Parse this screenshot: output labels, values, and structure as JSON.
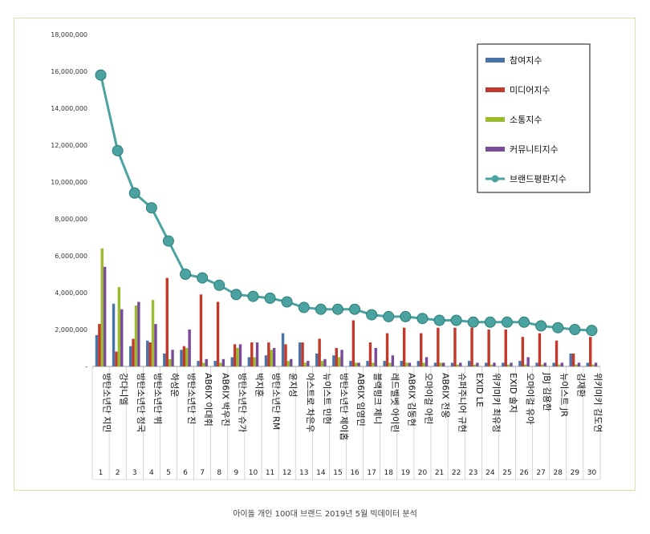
{
  "caption": "아이돌 개인 100대 브랜드 2019년 5월 빅데이터 분석",
  "colors": {
    "participation": "#4a74a8",
    "media": "#c0392b",
    "communication": "#9bbb2e",
    "community": "#7a4a9a",
    "brand": "#4aa3a0"
  },
  "chart_data": {
    "type": "bar",
    "ylim": [
      0,
      18000000
    ],
    "yticks": [
      "-",
      "2,000,000",
      "4,000,000",
      "6,000,000",
      "8,000,000",
      "10,000,000",
      "12,000,000",
      "14,000,000",
      "16,000,000",
      "18,000,000"
    ],
    "grid": false,
    "legend_position": "top-right",
    "categories": [
      "방탄소년단 지민",
      "강다니엘",
      "방탄소년단 정국",
      "방탄소년단 뷔",
      "하성운",
      "방탄소년단 진",
      "AB6IX 이대휘",
      "AB6IX 박우진",
      "방탄소년단 슈가",
      "박지훈",
      "방탄소년단 RM",
      "윤지성",
      "아스트로 차은우",
      "뉴이스트 민현",
      "방탄소년단 제이홉",
      "AB6IX 임영민",
      "블랙핑크 제니",
      "레드벨벳 아이린",
      "AB6IX 김동현",
      "오마이걸 아린",
      "AB6IX 전웅",
      "슈퍼주니어 규현",
      "EXID LE",
      "위키미키 최유정",
      "EXID 솔지",
      "오마이걸 유아",
      "JBJ 김용한",
      "뉴이스트 JR",
      "김재환",
      "위키미키 김도연"
    ],
    "ranks": [
      "1",
      "2",
      "3",
      "4",
      "5",
      "6",
      "7",
      "8",
      "9",
      "10",
      "11",
      "12",
      "13",
      "14",
      "15",
      "16",
      "17",
      "18",
      "19",
      "20",
      "21",
      "22",
      "23",
      "24",
      "25",
      "26",
      "27",
      "28",
      "29",
      "30"
    ],
    "series": [
      {
        "name": "참여지수",
        "color_key": "participation",
        "values": [
          1700000,
          3400000,
          1100000,
          1400000,
          700000,
          900000,
          300000,
          300000,
          500000,
          500000,
          600000,
          1800000,
          1300000,
          700000,
          600000,
          300000,
          300000,
          300000,
          300000,
          300000,
          200000,
          200000,
          300000,
          200000,
          200000,
          300000,
          200000,
          200000,
          700000,
          200000
        ]
      },
      {
        "name": "미디어지수",
        "color_key": "media",
        "values": [
          2300000,
          800000,
          1500000,
          1300000,
          4800000,
          1100000,
          3900000,
          3500000,
          1200000,
          1300000,
          1300000,
          1200000,
          1300000,
          1500000,
          1000000,
          2500000,
          1300000,
          1800000,
          2100000,
          1800000,
          2100000,
          2100000,
          2100000,
          2000000,
          2000000,
          1600000,
          1800000,
          1400000,
          700000,
          1600000
        ]
      },
      {
        "name": "소통지수",
        "color_key": "communication",
        "values": [
          6400000,
          4300000,
          3300000,
          3600000,
          400000,
          1000000,
          200000,
          200000,
          1000000,
          500000,
          900000,
          300000,
          200000,
          300000,
          500000,
          200000,
          200000,
          200000,
          200000,
          200000,
          200000,
          100000,
          100000,
          100000,
          100000,
          100000,
          100000,
          100000,
          100000,
          100000
        ]
      },
      {
        "name": "커뮤니티지수",
        "color_key": "community",
        "values": [
          5400000,
          3100000,
          3500000,
          2300000,
          900000,
          2000000,
          400000,
          400000,
          1200000,
          1300000,
          1000000,
          400000,
          300000,
          400000,
          900000,
          200000,
          1000000,
          600000,
          200000,
          500000,
          200000,
          200000,
          200000,
          200000,
          200000,
          500000,
          200000,
          200000,
          200000,
          200000
        ]
      },
      {
        "name": "브랜드평판지수",
        "color_key": "brand",
        "kind": "line",
        "values": [
          15800000,
          11700000,
          9400000,
          8600000,
          6800000,
          5000000,
          4800000,
          4400000,
          3900000,
          3800000,
          3700000,
          3500000,
          3200000,
          3100000,
          3100000,
          3100000,
          2800000,
          2700000,
          2700000,
          2600000,
          2500000,
          2500000,
          2400000,
          2400000,
          2400000,
          2400000,
          2200000,
          2100000,
          2000000,
          1950000
        ]
      }
    ]
  }
}
